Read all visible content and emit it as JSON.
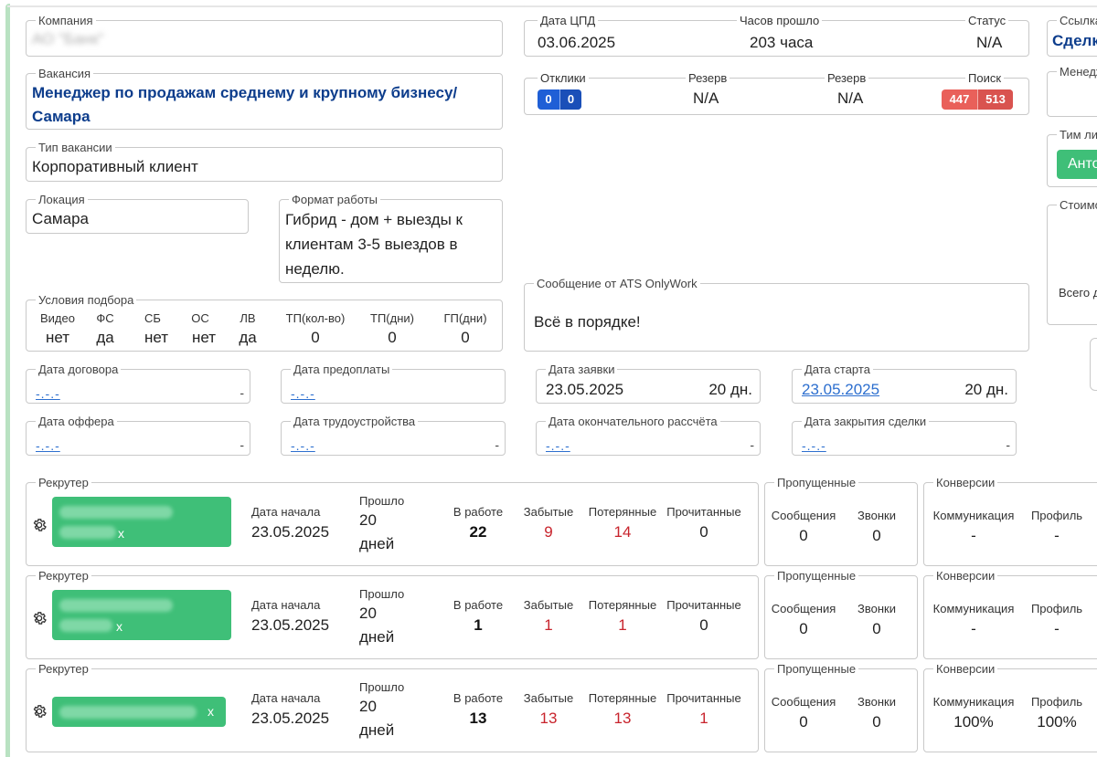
{
  "company": {
    "label": "Компания",
    "value": "АО \"Банк\""
  },
  "vacancy": {
    "label": "Вакансия",
    "line1": "Менеджер по продажам среднему и крупному бизнесу/",
    "line2": "Самара"
  },
  "vacancy_type": {
    "label": "Тип вакансии",
    "value": "Корпоративный клиент"
  },
  "location": {
    "label": "Локация",
    "value": "Самара"
  },
  "work_format": {
    "label": "Формат работы",
    "line1": "Гибрид - дом + выезды к",
    "line2": "клиентам 3-5 выездов в",
    "line3": "неделю."
  },
  "conditions": {
    "label": "Условия подбора",
    "items": [
      {
        "label": "Видео",
        "value": "нет"
      },
      {
        "label": "ФС",
        "value": "да"
      },
      {
        "label": "СБ",
        "value": "нет"
      },
      {
        "label": "ОС",
        "value": "нет"
      },
      {
        "label": "ЛВ",
        "value": "да"
      },
      {
        "label": "ТП(кол-во)",
        "value": "0"
      },
      {
        "label": "ТП(дни)",
        "value": "0"
      },
      {
        "label": "ГП(дни)",
        "value": "0"
      }
    ]
  },
  "cpd": {
    "date_label": "Дата ЦПД",
    "date": "03.06.2025",
    "hours_label": "Часов прошло",
    "hours": "203 часа",
    "status_label": "Статус",
    "status": "N/A"
  },
  "responses": {
    "label": "Отклики",
    "a": "0",
    "b": "0",
    "reserve1_label": "Резерв",
    "reserve1": "N/A",
    "reserve2_label": "Резерв",
    "reserve2": "N/A",
    "search_label": "Поиск",
    "search_a": "447",
    "search_b": "513"
  },
  "ats_message": {
    "label": "Сообщение от ATS OnlyWork",
    "text": "Всё в порядке!"
  },
  "right_panel": {
    "link_label": "Ссылка",
    "link_value": "Сделк",
    "manager_label": "Менедж",
    "team_label": "Тим ли",
    "team_button": "Анто",
    "cost_label": "Стоимо",
    "total_label": "Всего д"
  },
  "dates": {
    "contract": {
      "label": "Дата договора",
      "value": "-.-.-",
      "right": "-"
    },
    "prepay": {
      "label": "Дата предоплаты",
      "value": "-.-.-"
    },
    "request": {
      "label": "Дата заявки",
      "value": "23.05.2025",
      "days": "20 дн."
    },
    "start": {
      "label": "Дата старта",
      "value": "23.05.2025",
      "days": "20 дн."
    },
    "offer": {
      "label": "Дата оффера",
      "value": "-.-.-",
      "right": "-"
    },
    "employment": {
      "label": "Дата трудоустройства",
      "value": "-.-.-",
      "right": "-"
    },
    "final_payment": {
      "label": "Дата окончательного рассчёта",
      "value": "-.-.-",
      "right": "-"
    },
    "deal_close": {
      "label": "Дата закрытия сделки",
      "value": "-.-.-",
      "right": "-"
    }
  },
  "recruiters": [
    {
      "label": "Рекрутер",
      "x": "x",
      "start_label": "Дата начала",
      "start": "23.05.2025",
      "passed_label": "Прошло",
      "passed_num": "20",
      "passed_unit": "дней",
      "inwork_label": "В работе",
      "inwork": "22",
      "forgotten_label": "Забытые",
      "forgotten": "9",
      "lost_label": "Потерянные",
      "lost": "14",
      "read_label": "Прочитанные",
      "read": "0",
      "missed_label": "Пропущенные",
      "messages_label": "Сообщения",
      "messages": "0",
      "calls_label": "Звонки",
      "calls": "0",
      "conv_label": "Конверсии",
      "comm_label": "Коммуникация",
      "comm": "-",
      "profile_label": "Профиль",
      "profile": "-"
    },
    {
      "label": "Рекрутер",
      "x": "x",
      "start_label": "Дата начала",
      "start": "23.05.2025",
      "passed_label": "Прошло",
      "passed_num": "20",
      "passed_unit": "дней",
      "inwork_label": "В работе",
      "inwork": "1",
      "forgotten_label": "Забытые",
      "forgotten": "1",
      "lost_label": "Потерянные",
      "lost": "1",
      "read_label": "Прочитанные",
      "read": "0",
      "missed_label": "Пропущенные",
      "messages_label": "Сообщения",
      "messages": "0",
      "calls_label": "Звонки",
      "calls": "0",
      "conv_label": "Конверсии",
      "comm_label": "Коммуникация",
      "comm": "-",
      "profile_label": "Профиль",
      "profile": "-"
    },
    {
      "label": "Рекрутер",
      "x": "x",
      "start_label": "Дата начала",
      "start": "23.05.2025",
      "passed_label": "Прошло",
      "passed_num": "20",
      "passed_unit": "дней",
      "inwork_label": "В работе",
      "inwork": "13",
      "forgotten_label": "Забытые",
      "forgotten": "13",
      "lost_label": "Потерянные",
      "lost": "13",
      "read_label": "Прочитанные",
      "read": "1",
      "missed_label": "Пропущенные",
      "messages_label": "Сообщения",
      "messages": "0",
      "calls_label": "Звонки",
      "calls": "0",
      "conv_label": "Конверсии",
      "comm_label": "Коммуникация",
      "comm": "100%",
      "profile_label": "Профиль",
      "profile": "100%"
    }
  ]
}
